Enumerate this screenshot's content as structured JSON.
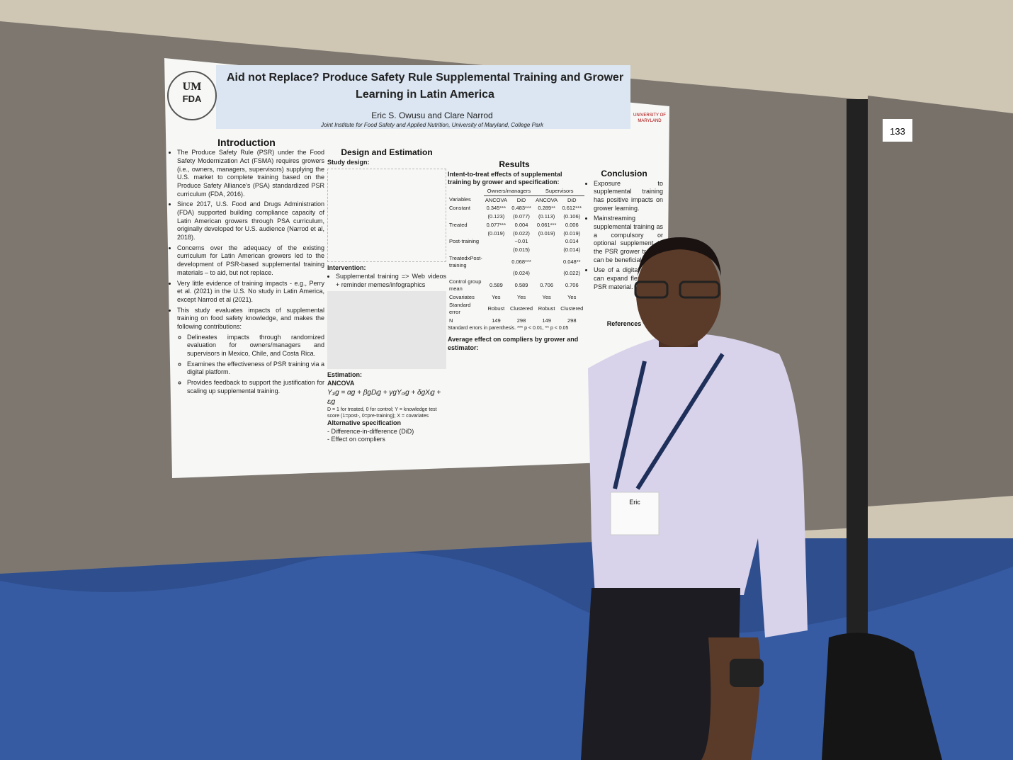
{
  "poster": {
    "logo_left": [
      "UM",
      "FDA"
    ],
    "logo_right": "UNIVERSITY OF MARYLAND",
    "title": "Aid not Replace? Produce Safety Rule Supplemental Training and Grower Learning in Latin America",
    "authors": "Eric S. Owusu and Clare Narrod",
    "affiliation": "Joint Institute for Food Safety and Applied Nutrition, University of Maryland, College Park",
    "introduction": {
      "heading": "Introduction",
      "bullets": [
        "The Produce Safety Rule (PSR) under the Food Safety Modernization Act (FSMA) requires growers (i.e., owners, managers, supervisors) supplying the U.S. market to complete training based on the Produce Safety Alliance's (PSA) standardized PSR curriculum (FDA, 2016).",
        "Since 2017, U.S. Food and Drugs Administration (FDA) supported building compliance capacity of Latin American growers through PSA curriculum, originally developed for U.S. audience (Narrod et al, 2018).",
        "Concerns over the adequacy of the existing curriculum for Latin American growers led to the development of PSR-based supplemental training materials – to aid, but not replace.",
        "Very little evidence of training impacts - e.g., Perry et al. (2021) in the U.S. No study in Latin America, except Narrod et al (2021).",
        "This study evaluates impacts of supplemental training on food safety knowledge, and makes the following contributions:"
      ],
      "sub_bullets": [
        "Delineates impacts through randomized evaluation for owners/managers and supervisors in Mexico, Chile, and Costa Rica.",
        "Examines the effectiveness of PSR training via a digital platform.",
        "Provides feedback to support the justification for scaling up supplemental training."
      ]
    },
    "design": {
      "heading": "Design and Estimation",
      "study_design": "Study design:",
      "intervention_heading": "Intervention:",
      "intervention": "Supplemental training => Web videos + reminder memes/infographics",
      "estimation_heading": "Estimation:",
      "ancova": "ANCOVA",
      "equation": "Y₁ᵢg = αg + βgDᵢg + γgY₀ᵢg + δgXᵢg + εᵢg",
      "equation_note": "D = 1 for treated, 0 for control; Y = knowledge test score (1=post-, 0=pre-training); X = covariates",
      "alternative_heading": "Alternative specification",
      "alternatives": [
        "- Difference-in-difference (DiD)",
        "- Effect on compliers"
      ]
    },
    "results": {
      "heading": "Results",
      "subhead1": "Intent-to-treat effects of supplemental training by grower and specification:",
      "groups": [
        "Owners/managers",
        "Supervisors"
      ],
      "columns": [
        "Variables",
        "ANCOVA",
        "DiD",
        "ANCOVA",
        "DiD"
      ],
      "rows": [
        [
          "Constant",
          "0.345***",
          "0.483***",
          "0.289**",
          "0.612***"
        ],
        [
          null,
          "(0.123)",
          "(0.077)",
          "(0.113)",
          "(0.106)"
        ],
        [
          "Treated",
          "0.077***",
          "0.004",
          "0.061***",
          "0.006"
        ],
        [
          null,
          "(0.019)",
          "(0.022)",
          "(0.019)",
          "(0.019)"
        ],
        [
          "Post-training",
          null,
          "−0.01",
          null,
          "0.014"
        ],
        [
          null,
          null,
          "(0.015)",
          null,
          "(0.014)"
        ],
        [
          "TreatedxPost-training",
          null,
          "0.068***",
          null,
          "0.048**"
        ],
        [
          null,
          null,
          "(0.024)",
          null,
          "(0.022)"
        ],
        [
          "Control group mean",
          "0.589",
          "0.589",
          "0.706",
          "0.706"
        ],
        [
          "Covariates",
          "Yes",
          "Yes",
          "Yes",
          "Yes"
        ],
        [
          "Standard error",
          "Robust",
          "Clustered",
          "Robust",
          "Clustered"
        ],
        [
          "N",
          "149",
          "298",
          "149",
          "298"
        ]
      ],
      "note": "Standard errors in parenthesis. *** p < 0.01, ** p < 0.05",
      "subhead2": "Average effect on compliers by grower and estimator:"
    },
    "conclusion": {
      "heading": "Conclusion",
      "bullets": [
        "Exposure to supplemental training has positive impacts on grower learning.",
        "Mainstreaming supplemental training as a compulsory or optional supplement to the PSR grower training can be beneficial.",
        "Use of a digital training can expand flexibility of PSR material."
      ]
    },
    "references_heading": "References"
  },
  "booth_number": "133",
  "badge_name": "Eric"
}
